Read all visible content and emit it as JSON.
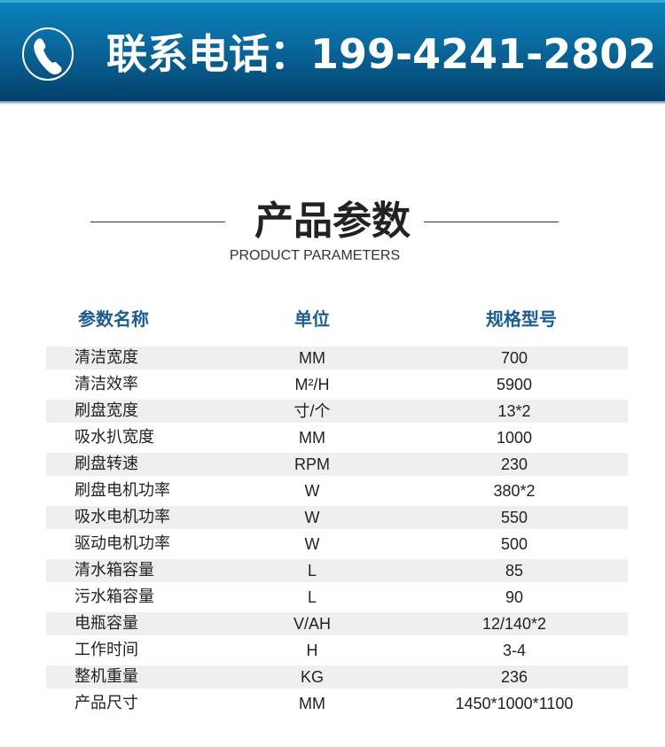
{
  "banner": {
    "phone_label": "联系电话：199-4241-2802",
    "icon": "phone-icon"
  },
  "section": {
    "title": "产品参数",
    "subtitle": "PRODUCT PARAMETERS"
  },
  "table": {
    "headers": [
      "参数名称",
      "单位",
      "规格型号"
    ],
    "rows": [
      [
        "清洁宽度",
        "MM",
        "700"
      ],
      [
        "清洁效率",
        "M²/H",
        "5900"
      ],
      [
        "刷盘宽度",
        "寸/个",
        "13*2"
      ],
      [
        "吸水扒宽度",
        "MM",
        "1000"
      ],
      [
        "刷盘转速",
        "RPM",
        "230"
      ],
      [
        "刷盘电机功率",
        "W",
        "380*2"
      ],
      [
        "吸水电机功率",
        "W",
        "550"
      ],
      [
        "驱动电机功率",
        "W",
        "500"
      ],
      [
        "清水箱容量",
        "L",
        "85"
      ],
      [
        "污水箱容量",
        "L",
        "90"
      ],
      [
        "电瓶容量",
        "V/AH",
        "12/140*2"
      ],
      [
        "工作时间",
        "H",
        "3-4"
      ],
      [
        "整机重量",
        "KG",
        "236"
      ],
      [
        "产品尺寸",
        "MM",
        "1450*1000*1100"
      ]
    ]
  },
  "colors": {
    "banner": "#0a6a9e",
    "header_text": "#1b5d8f",
    "row_shade": "#efefef"
  }
}
